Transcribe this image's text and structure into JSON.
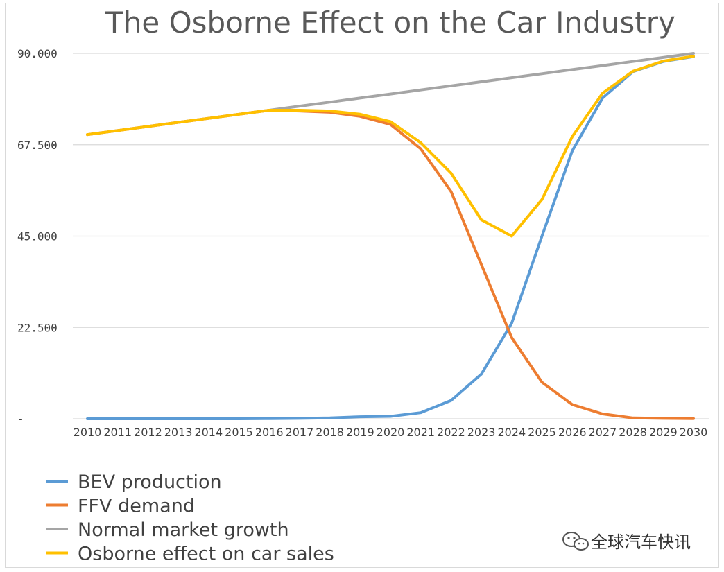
{
  "chart_data": {
    "type": "line",
    "title": "The Osborne Effect on the Car Industry",
    "xlabel": "",
    "ylabel": "",
    "ylim": [
      0,
      90000
    ],
    "ytick_labels": [
      "-",
      "22.500",
      "45.000",
      "67.500",
      "90.000"
    ],
    "ytick_values": [
      0,
      22500,
      45000,
      67500,
      90000
    ],
    "x": [
      "2010",
      "2011",
      "2012",
      "2013",
      "2014",
      "2015",
      "2016",
      "2017",
      "2018",
      "2019",
      "2020",
      "2021",
      "2022",
      "2023",
      "2024",
      "2025",
      "2026",
      "2027",
      "2028",
      "2029",
      "2030"
    ],
    "grid": true,
    "legend_position": "bottom-left",
    "series": [
      {
        "name": "BEV production",
        "color": "#5b9bd5",
        "values": [
          0,
          0,
          0,
          0,
          0,
          0,
          50,
          100,
          200,
          500,
          600,
          1500,
          4500,
          11000,
          23500,
          45000,
          66000,
          79000,
          85500,
          88000,
          89200
        ]
      },
      {
        "name": "FFV demand",
        "color": "#ed7d31",
        "values": [
          70000,
          71000,
          72000,
          73000,
          74000,
          75000,
          76000,
          75800,
          75500,
          74500,
          72500,
          66500,
          56000,
          38000,
          20000,
          9000,
          3500,
          1200,
          200,
          100,
          50
        ]
      },
      {
        "name": "Normal market growth",
        "color": "#a5a5a5",
        "values": [
          70000,
          71000,
          72000,
          73000,
          74000,
          75000,
          76000,
          77000,
          78000,
          79000,
          80000,
          81000,
          82000,
          83000,
          84000,
          85000,
          86000,
          87000,
          88000,
          89000,
          90000
        ]
      },
      {
        "name": "Osborne effect on car sales",
        "color": "#ffc000",
        "values": [
          70000,
          71000,
          72000,
          73000,
          74000,
          75000,
          76000,
          76000,
          75800,
          75000,
          73200,
          68000,
          60500,
          49000,
          45000,
          54000,
          69500,
          80200,
          85600,
          88100,
          89300
        ]
      }
    ]
  },
  "watermark": {
    "text": "全球汽车快讯",
    "icon": "wechat-icon"
  }
}
